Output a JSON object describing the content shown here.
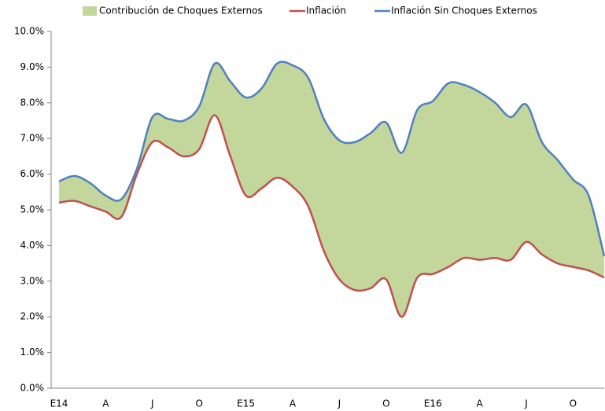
{
  "chart_data": {
    "type": "area-line",
    "categories": [
      "E14",
      null,
      null,
      "A",
      null,
      null,
      "J",
      null,
      null,
      "O",
      null,
      null,
      "E15",
      null,
      null,
      "A",
      null,
      null,
      "J",
      null,
      null,
      "O",
      null,
      null,
      "E16",
      null,
      null,
      "A",
      null,
      null,
      "J",
      null,
      null,
      "O",
      null,
      null
    ],
    "series": [
      {
        "name": "Contribución de Choques Externos",
        "color": "#c3d69b",
        "kind": "area",
        "stack_on": 1,
        "values": [
          0.6,
          0.7,
          0.65,
          0.45,
          0.5,
          0.15,
          0.7,
          0.8,
          1.0,
          1.2,
          1.45,
          2.1,
          2.75,
          2.8,
          3.2,
          3.4,
          3.6,
          3.7,
          3.9,
          4.15,
          4.35,
          4.4,
          4.6,
          4.7,
          4.85,
          5.15,
          4.85,
          4.7,
          4.35,
          4.0,
          3.85,
          3.15,
          2.9,
          2.45,
          2.1,
          0.6
        ]
      },
      {
        "name": "Inflación",
        "color": "#c0504d",
        "kind": "line",
        "values": [
          5.2,
          5.25,
          5.1,
          4.95,
          4.8,
          6.0,
          6.9,
          6.75,
          6.5,
          6.7,
          7.65,
          6.5,
          5.4,
          5.6,
          5.9,
          5.65,
          5.1,
          3.85,
          3.05,
          2.75,
          2.8,
          3.05,
          2.0,
          3.1,
          3.2,
          3.4,
          3.65,
          3.6,
          3.65,
          3.6,
          4.1,
          3.75,
          3.5,
          3.4,
          3.3,
          3.1
        ]
      },
      {
        "name": "Inflación Sin Choques Externos",
        "color": "#4f81bd",
        "kind": "line",
        "values": [
          5.8,
          5.95,
          5.75,
          5.4,
          5.3,
          6.15,
          7.6,
          7.55,
          7.5,
          7.9,
          9.1,
          8.6,
          8.15,
          8.4,
          9.1,
          9.05,
          8.7,
          7.55,
          6.95,
          6.9,
          7.15,
          7.45,
          6.6,
          7.8,
          8.05,
          8.55,
          8.5,
          8.3,
          8.0,
          7.6,
          7.95,
          6.9,
          6.4,
          5.85,
          5.4,
          3.7
        ]
      }
    ],
    "ylim": [
      0,
      10
    ],
    "yticks": [
      {
        "value": 0,
        "label": "0.0%"
      },
      {
        "value": 1,
        "label": "1.0%"
      },
      {
        "value": 2,
        "label": "2.0%"
      },
      {
        "value": 3,
        "label": "3.0%"
      },
      {
        "value": 4,
        "label": "4.0%"
      },
      {
        "value": 5,
        "label": "5.0%"
      },
      {
        "value": 6,
        "label": "6.0%"
      },
      {
        "value": 7,
        "label": "7.0%"
      },
      {
        "value": 8,
        "label": "8.0%"
      },
      {
        "value": 9,
        "label": "9.0%"
      },
      {
        "value": 10,
        "label": "10.0%"
      }
    ],
    "grid": false,
    "legend": "top"
  }
}
